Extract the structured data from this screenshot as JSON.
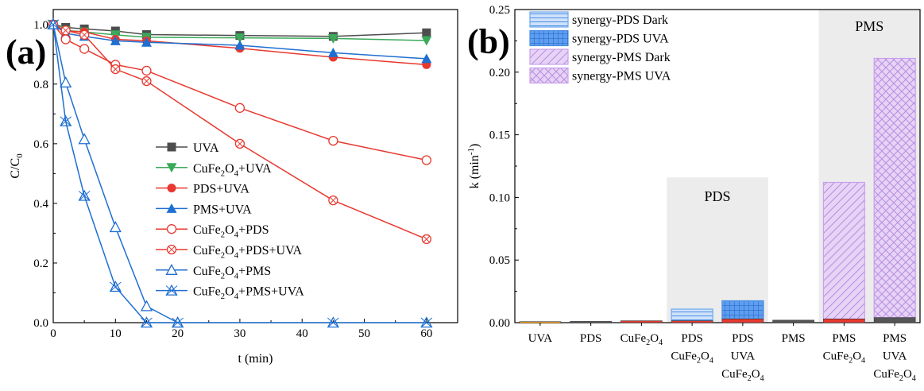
{
  "chart_data": [
    {
      "type": "line",
      "panel_label": "(a)",
      "xlabel": "t (min)",
      "ylabel": "C/C0",
      "xlim": [
        0,
        65
      ],
      "ylim": [
        0,
        1.05
      ],
      "xticks": [
        0,
        10,
        20,
        30,
        40,
        50,
        60
      ],
      "yticks": [
        0.0,
        0.2,
        0.4,
        0.6,
        0.8,
        1.0
      ],
      "legend_position": "center-right",
      "series": [
        {
          "name": "UVA",
          "marker": "square",
          "color": "#4d4d4d",
          "x": [
            0,
            2,
            5,
            10,
            15,
            30,
            45,
            60
          ],
          "y": [
            1.0,
            0.99,
            0.985,
            0.978,
            0.966,
            0.963,
            0.96,
            0.972
          ]
        },
        {
          "name": "CuFe2O4+UVA",
          "marker": "triangle-down",
          "color": "#3aaa5a",
          "x": [
            0,
            2,
            5,
            10,
            15,
            30,
            45,
            60
          ],
          "y": [
            1.0,
            0.98,
            0.975,
            0.965,
            0.957,
            0.955,
            0.953,
            0.946
          ]
        },
        {
          "name": "PDS+UVA",
          "marker": "circle",
          "color": "#e8382f",
          "x": [
            0,
            2,
            5,
            10,
            15,
            30,
            45,
            60
          ],
          "y": [
            1.0,
            0.978,
            0.975,
            0.95,
            0.945,
            0.92,
            0.89,
            0.865
          ]
        },
        {
          "name": "PMS+UVA",
          "marker": "triangle-up",
          "color": "#1f6fd1",
          "x": [
            0,
            2,
            5,
            10,
            15,
            30,
            45,
            60
          ],
          "y": [
            1.0,
            0.97,
            0.96,
            0.945,
            0.94,
            0.93,
            0.905,
            0.885
          ]
        },
        {
          "name": "CuFe2O4+PDS",
          "marker": "circle-open",
          "color": "#e8382f",
          "x": [
            0,
            2,
            5,
            10,
            15,
            30,
            45,
            60
          ],
          "y": [
            1.0,
            0.95,
            0.918,
            0.865,
            0.845,
            0.72,
            0.61,
            0.545
          ]
        },
        {
          "name": "CuFe2O4+PDS+UVA",
          "marker": "circle-x",
          "color": "#e8382f",
          "x": [
            0,
            2,
            5,
            10,
            15,
            30,
            45,
            60
          ],
          "y": [
            1.0,
            0.98,
            0.965,
            0.85,
            0.81,
            0.6,
            0.41,
            0.28
          ]
        },
        {
          "name": "CuFe2O4+PMS",
          "marker": "triangle-open",
          "color": "#1f6fd1",
          "x": [
            0,
            2,
            5,
            10,
            15,
            20
          ],
          "y": [
            1.0,
            0.805,
            0.615,
            0.32,
            0.055,
            0.0
          ]
        },
        {
          "name": "CuFe2O4+PMS+UVA",
          "marker": "triangle-x",
          "color": "#1f6fd1",
          "x": [
            0,
            2,
            5,
            10,
            15,
            20,
            45,
            60
          ],
          "y": [
            1.0,
            0.675,
            0.425,
            0.12,
            0.0,
            0.0,
            0.0,
            0.0
          ]
        }
      ],
      "legend_labels": [
        {
          "base": "UVA",
          "sub": "",
          "rest": ""
        },
        {
          "base": "CuFe",
          "sub": "2",
          "mid": "O",
          "sub2": "4",
          "rest": "+UVA"
        },
        {
          "base": "PDS+UVA",
          "sub": "",
          "rest": ""
        },
        {
          "base": "PMS+UVA",
          "sub": "",
          "rest": ""
        },
        {
          "base": "CuFe",
          "sub": "2",
          "mid": "O",
          "sub2": "4",
          "rest": "+PDS"
        },
        {
          "base": "CuFe",
          "sub": "2",
          "mid": "O",
          "sub2": "4",
          "rest": "+PDS+UVA"
        },
        {
          "base": "CuFe",
          "sub": "2",
          "mid": "O",
          "sub2": "4",
          "rest": "+PMS"
        },
        {
          "base": "CuFe",
          "sub": "2",
          "mid": "O",
          "sub2": "4",
          "rest": "+PMS+UVA"
        }
      ]
    },
    {
      "type": "bar",
      "panel_label": "(b)",
      "ylabel": "k (min-1)",
      "ylim": [
        0,
        0.25
      ],
      "yticks": [
        0.0,
        0.05,
        0.1,
        0.15,
        0.2,
        0.25
      ],
      "legend_position": "top-left",
      "categories": [
        {
          "lines": [
            "UVA"
          ]
        },
        {
          "lines": [
            "PDS"
          ]
        },
        {
          "lines": [
            "CuFe2O4"
          ]
        },
        {
          "lines": [
            "PDS",
            "CuFe2O4"
          ]
        },
        {
          "lines": [
            "PDS",
            "UVA",
            "CuFe2O4"
          ]
        },
        {
          "lines": [
            "PMS"
          ]
        },
        {
          "lines": [
            "PMS",
            "CuFe2O4"
          ]
        },
        {
          "lines": [
            "PMS",
            "UVA",
            "CuFe2O4"
          ]
        }
      ],
      "bars": [
        {
          "value": 0.0008,
          "color": "#f0a030",
          "synergy": null
        },
        {
          "value": 0.001,
          "color": "#555555",
          "synergy": null
        },
        {
          "value": 0.0015,
          "color": "#e8382f",
          "synergy": null
        },
        {
          "value": 0.0015,
          "color": "#e8382f",
          "synergy": "synergy-PDS Dark",
          "total": 0.0108
        },
        {
          "value": 0.003,
          "color": "#e8382f",
          "synergy": "synergy-PDS UVA",
          "total": 0.0175
        },
        {
          "value": 0.002,
          "color": "#555555",
          "synergy": null
        },
        {
          "value": 0.003,
          "color": "#e8382f",
          "synergy": "synergy-PMS Dark",
          "total": 0.112
        },
        {
          "value": 0.004,
          "color": "#555555",
          "synergy": "synergy-PMS UVA",
          "total": 0.211
        }
      ],
      "regions": [
        {
          "label": "PDS",
          "from": 3,
          "to": 4,
          "top": 0.116
        },
        {
          "label": "PMS",
          "from": 6,
          "to": 7,
          "top": 0.25
        }
      ],
      "legend": [
        "synergy-PDS Dark",
        "synergy-PDS UVA",
        "synergy-PMS Dark",
        "synergy-PMS UVA"
      ],
      "colors": {
        "pds": "#6aa8ef",
        "pms": "#c9a0ec",
        "region": "#ececec"
      }
    }
  ]
}
